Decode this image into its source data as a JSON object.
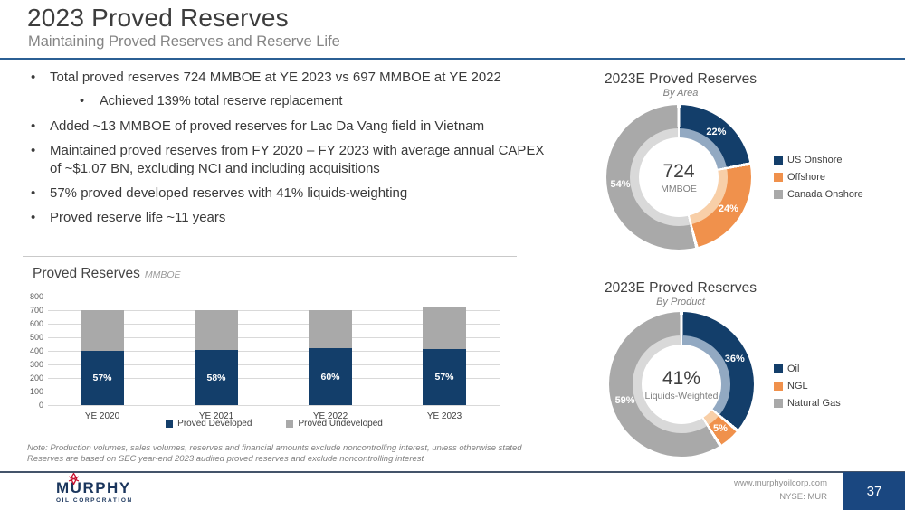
{
  "header": {
    "title": "2023 Proved Reserves",
    "subtitle": "Maintaining Proved Reserves and Reserve Life"
  },
  "bullets": [
    {
      "text": "Total proved reserves 724 MMBOE at YE 2023 vs 697 MMBOE at YE 2022",
      "level": 1
    },
    {
      "text": "Achieved 139% total reserve replacement",
      "level": 2
    },
    {
      "text": "Added ~13 MMBOE of proved reserves for Lac Da Vang field in Vietnam",
      "level": 1
    },
    {
      "text": "Maintained proved reserves from FY 2020 – FY 2023 with average annual CAPEX of ~$1.07 BN, excluding NCI and including acquisitions",
      "level": 1
    },
    {
      "text": "57% proved developed reserves with 41% liquids-weighting",
      "level": 1
    },
    {
      "text": "Proved reserve life ~11 years",
      "level": 1
    }
  ],
  "colors": {
    "navy": "#133e6a",
    "orange": "#f0914c",
    "gray": "#a9a9a9",
    "accent_rule": "#2b5f94",
    "page_box": "#1a4780",
    "logo_red": "#c8102e"
  },
  "chart_data": [
    {
      "type": "bar",
      "title": "Proved Reserves",
      "unit": "MMBOE",
      "categories": [
        "YE 2020",
        "YE 2021",
        "YE 2022",
        "YE 2023"
      ],
      "series": [
        {
          "name": "Proved Developed",
          "color": "#133e6a",
          "values": [
            397,
            405,
            418,
            413
          ],
          "pct_labels": [
            "57%",
            "58%",
            "60%",
            "57%"
          ]
        },
        {
          "name": "Proved Undeveloped",
          "color": "#a9a9a9",
          "values": [
            300,
            294,
            279,
            311
          ]
        }
      ],
      "totals": [
        697,
        699,
        697,
        724
      ],
      "ylim": [
        0,
        800
      ],
      "yticks": [
        0,
        100,
        200,
        300,
        400,
        500,
        600,
        700,
        800
      ],
      "legend_position": "bottom",
      "grid": true
    },
    {
      "type": "donut",
      "title": "2023E Proved Reserves",
      "subtitle": "By Area",
      "center_value": "724",
      "center_label": "MMBOE",
      "legend_position": "right",
      "slices": [
        {
          "label": "US Onshore",
          "pct": 22,
          "pct_label": "22%",
          "color": "#133e6a",
          "faded": "#92a9c2"
        },
        {
          "label": "Offshore",
          "pct": 24,
          "pct_label": "24%",
          "color": "#f0914c",
          "faded": "#f8cfa8"
        },
        {
          "label": "Canada Onshore",
          "pct": 54,
          "pct_label": "54%",
          "color": "#a9a9a9",
          "faded": "#d9d9d9"
        }
      ]
    },
    {
      "type": "donut",
      "title": "2023E Proved Reserves",
      "subtitle": "By Product",
      "center_value": "41%",
      "center_label": "Liquids-Weighted",
      "legend_position": "right",
      "slices": [
        {
          "label": "Oil",
          "pct": 36,
          "pct_label": "36%",
          "color": "#133e6a",
          "faded": "#92a9c2"
        },
        {
          "label": "NGL",
          "pct": 5,
          "pct_label": "5%",
          "color": "#f0914c",
          "faded": "#f8cfa8"
        },
        {
          "label": "Natural Gas",
          "pct": 59,
          "pct_label": "59%",
          "color": "#a9a9a9",
          "faded": "#d9d9d9"
        }
      ]
    }
  ],
  "notes": {
    "line1": "Note: Production volumes, sales volumes, reserves and financial amounts exclude noncontrolling interest, unless otherwise stated",
    "line2": "Reserves are based on SEC year-end 2023 audited proved reserves and exclude noncontrolling interest"
  },
  "footer": {
    "website": "www.murphyoilcorp.com",
    "ticker": "NYSE: MUR",
    "page_number": "37",
    "logo_name": "MURPHY",
    "logo_sub": "OIL CORPORATION"
  }
}
